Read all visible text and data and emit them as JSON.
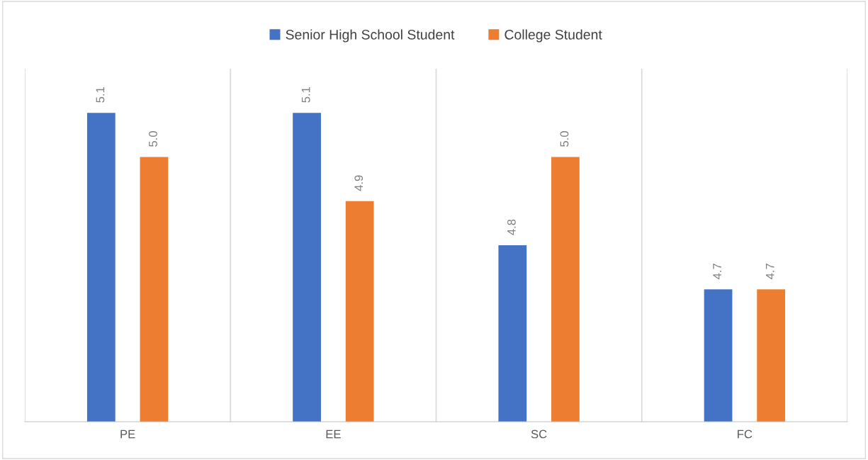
{
  "chart_data": {
    "type": "bar",
    "categories": [
      "PE",
      "EE",
      "SC",
      "FC"
    ],
    "series": [
      {
        "name": "Senior High School Student",
        "color": "#4472c4",
        "values": [
          5.1,
          5.1,
          4.8,
          4.7
        ],
        "value_labels": [
          "5.1",
          "5.1",
          "4.8",
          "4.7"
        ]
      },
      {
        "name": "College Student",
        "color": "#ed7d31",
        "values": [
          5.0,
          4.9,
          5.0,
          4.7
        ],
        "value_labels": [
          "5.0",
          "4.9",
          "5.0",
          "4.7"
        ]
      }
    ],
    "ylim": [
      4.4,
      5.2
    ],
    "tick_labels": "x",
    "grid": "x",
    "legend": "top"
  }
}
